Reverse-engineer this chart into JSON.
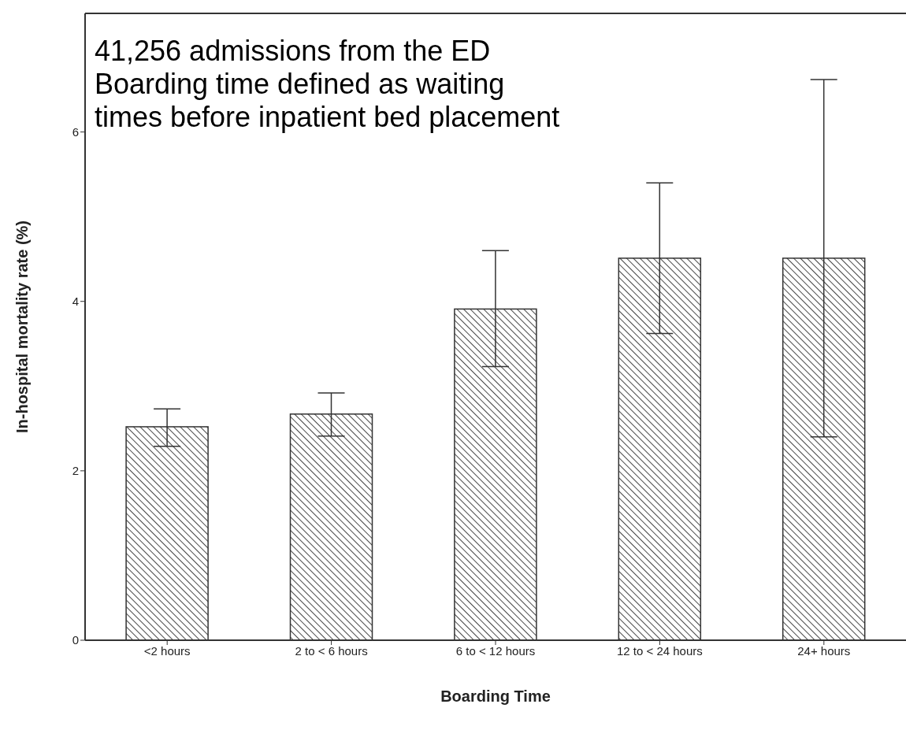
{
  "chart_data": {
    "type": "bar",
    "xlabel": "Boarding Time",
    "ylabel": "In-hospital mortality rate (%)",
    "categories": [
      "<2 hours",
      "2 to < 6 hours",
      "6 to < 12 hours",
      "12 to < 24 hours",
      "24+ hours"
    ],
    "values": [
      2.52,
      2.67,
      3.91,
      4.51,
      4.51
    ],
    "errors": [
      [
        2.29,
        2.73
      ],
      [
        2.41,
        2.92
      ],
      [
        3.23,
        4.6
      ],
      [
        3.62,
        5.4
      ],
      [
        2.4,
        6.62
      ]
    ],
    "color": "#333333",
    "ylim": [
      0,
      7.4
    ],
    "yticks": [
      0,
      2,
      4,
      6
    ],
    "grid": false,
    "annotations": [
      "41,256 admissions from the ED",
      "Boarding time defined as waiting times before inpatient bed placement"
    ]
  }
}
